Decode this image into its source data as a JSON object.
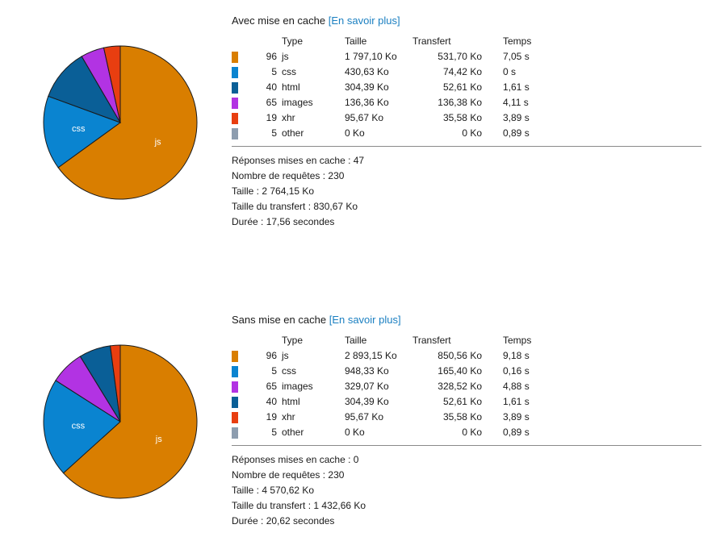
{
  "sections": [
    {
      "title": "Avec mise en cache",
      "link": "[En savoir plus]",
      "headers": {
        "type": "Type",
        "size": "Taille",
        "transfer": "Transfert",
        "time": "Temps"
      },
      "rows": [
        {
          "count": "96",
          "type": "js",
          "size": "1 797,10 Ko",
          "transfer": "531,70 Ko",
          "time": "7,05 s",
          "color": "#d97e00"
        },
        {
          "count": "5",
          "type": "css",
          "size": "430,63 Ko",
          "transfer": "74,42 Ko",
          "time": "0 s",
          "color": "#0a84d0"
        },
        {
          "count": "40",
          "type": "html",
          "size": "304,39 Ko",
          "transfer": "52,61 Ko",
          "time": "1,61 s",
          "color": "#0a5f97"
        },
        {
          "count": "65",
          "type": "images",
          "size": "136,36 Ko",
          "transfer": "136,38 Ko",
          "time": "4,11 s",
          "color": "#b233e3"
        },
        {
          "count": "19",
          "type": "xhr",
          "size": "95,67 Ko",
          "transfer": "35,58 Ko",
          "time": "3,89 s",
          "color": "#e83e10"
        },
        {
          "count": "5",
          "type": "other",
          "size": "0 Ko",
          "transfer": "0 Ko",
          "time": "0,89 s",
          "color": "#8d9daf"
        }
      ],
      "stats": [
        {
          "label": "Réponses mises en cache :",
          "value": "47"
        },
        {
          "label": "Nombre de requêtes :",
          "value": "230"
        },
        {
          "label": "Taille :",
          "value": "2 764,15 Ko"
        },
        {
          "label": "Taille du transfert :",
          "value": "830,67 Ko"
        },
        {
          "label": "Durée :",
          "value": "17,56 secondes"
        }
      ],
      "pie_labels": {
        "js": "js",
        "css": "css"
      },
      "pie_values": [
        1797.1,
        430.63,
        304.39,
        136.36,
        95.67,
        0
      ]
    },
    {
      "title": "Sans mise en cache",
      "link": "[En savoir plus]",
      "headers": {
        "type": "Type",
        "size": "Taille",
        "transfer": "Transfert",
        "time": "Temps"
      },
      "rows": [
        {
          "count": "96",
          "type": "js",
          "size": "2 893,15 Ko",
          "transfer": "850,56 Ko",
          "time": "9,18 s",
          "color": "#d97e00"
        },
        {
          "count": "5",
          "type": "css",
          "size": "948,33 Ko",
          "transfer": "165,40 Ko",
          "time": "0,16 s",
          "color": "#0a84d0"
        },
        {
          "count": "65",
          "type": "images",
          "size": "329,07 Ko",
          "transfer": "328,52 Ko",
          "time": "4,88 s",
          "color": "#b233e3"
        },
        {
          "count": "40",
          "type": "html",
          "size": "304,39 Ko",
          "transfer": "52,61 Ko",
          "time": "1,61 s",
          "color": "#0a5f97"
        },
        {
          "count": "19",
          "type": "xhr",
          "size": "95,67 Ko",
          "transfer": "35,58 Ko",
          "time": "3,89 s",
          "color": "#e83e10"
        },
        {
          "count": "5",
          "type": "other",
          "size": "0 Ko",
          "transfer": "0 Ko",
          "time": "0,89 s",
          "color": "#8d9daf"
        }
      ],
      "stats": [
        {
          "label": "Réponses mises en cache :",
          "value": "0"
        },
        {
          "label": "Nombre de requêtes :",
          "value": "230"
        },
        {
          "label": "Taille :",
          "value": "4 570,62 Ko"
        },
        {
          "label": "Taille du transfert :",
          "value": "1 432,66 Ko"
        },
        {
          "label": "Durée :",
          "value": "20,62 secondes"
        }
      ],
      "pie_labels": {
        "js": "js",
        "css": "css"
      },
      "pie_values": [
        2893.15,
        948.33,
        329.07,
        304.39,
        95.67,
        0
      ]
    }
  ]
}
